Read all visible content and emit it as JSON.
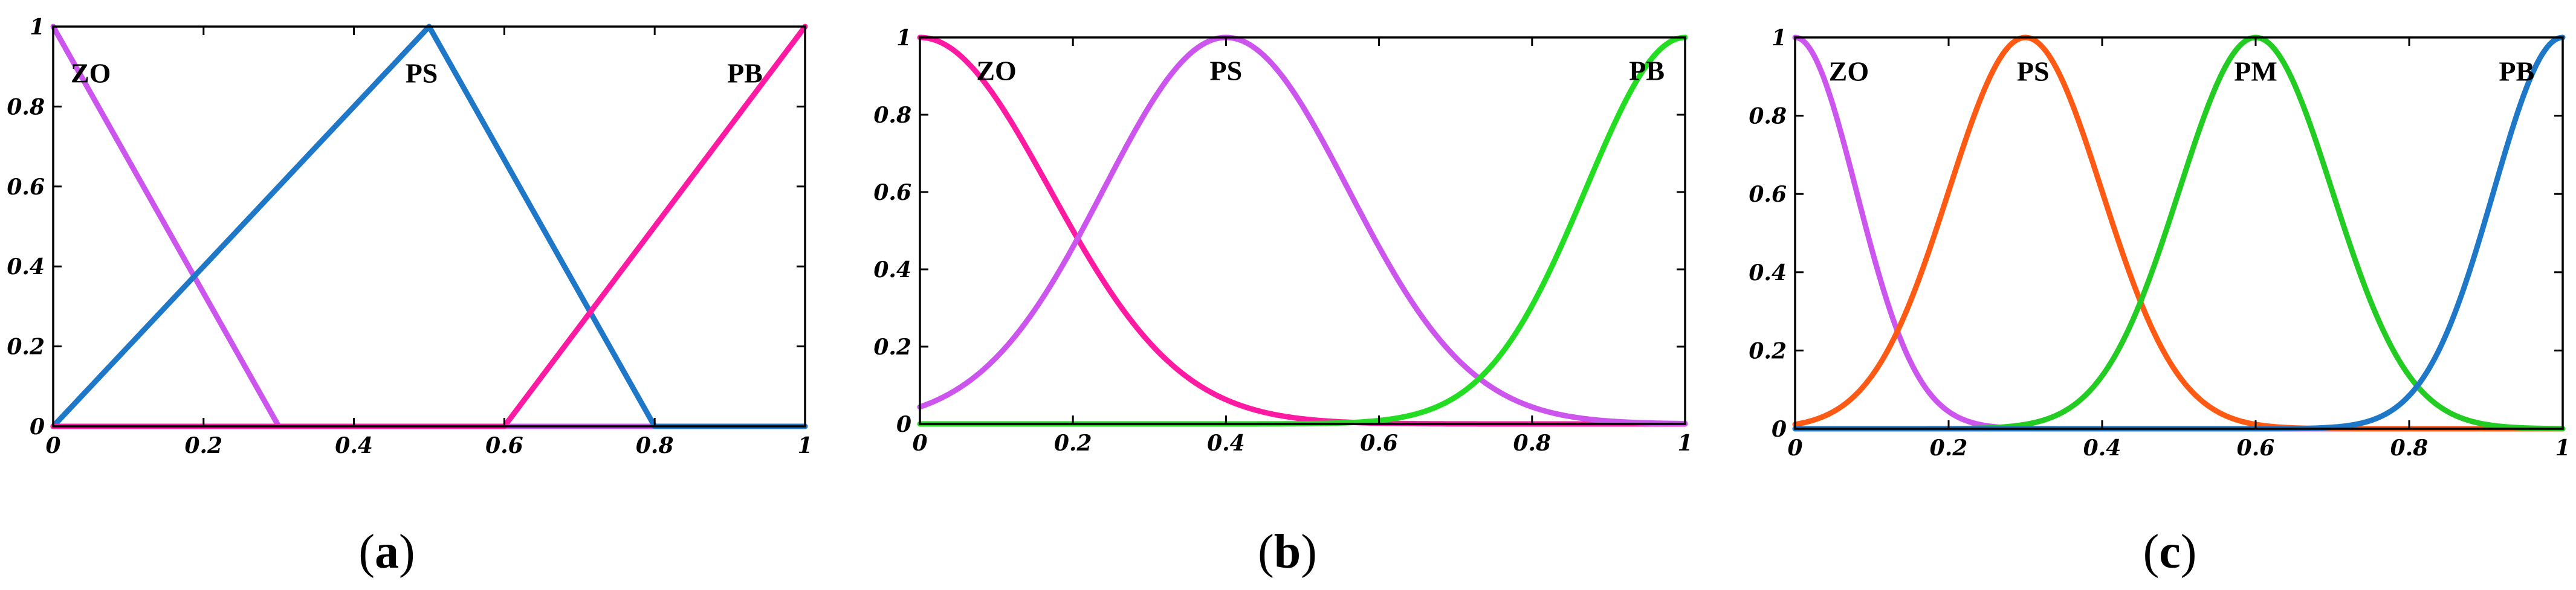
{
  "chart_data": [
    {
      "type": "line",
      "caption": {
        "open": "(",
        "letter": "a",
        "close": ")"
      },
      "xlim": [
        0,
        1
      ],
      "ylim": [
        0,
        1
      ],
      "xticks": [
        "0",
        "0.2",
        "0.4",
        "0.6",
        "0.8",
        "1"
      ],
      "yticks": [
        "0",
        "0.2",
        "0.4",
        "0.6",
        "0.8",
        "1"
      ],
      "grid": false,
      "series": [
        {
          "name": "ZO",
          "color": "#cc55ee",
          "shape": "triangle",
          "x": [
            0,
            0,
            0.3,
            1
          ],
          "y": [
            1,
            1,
            0,
            0
          ]
        },
        {
          "name": "PS",
          "color": "#1f77c8",
          "shape": "triangle",
          "x": [
            0,
            0.5,
            0.8,
            1
          ],
          "y": [
            0,
            1,
            0,
            0
          ]
        },
        {
          "name": "PB",
          "color": "#ff1aa3",
          "shape": "triangle",
          "x": [
            0,
            0.6,
            1,
            1
          ],
          "y": [
            0,
            0,
            1,
            1
          ]
        }
      ]
    },
    {
      "type": "line",
      "caption": {
        "open": "(",
        "letter": "b",
        "close": ")"
      },
      "xlim": [
        0,
        1
      ],
      "ylim": [
        0,
        1
      ],
      "xticks": [
        "0",
        "0.2",
        "0.4",
        "0.6",
        "0.8",
        "1"
      ],
      "yticks": [
        "0",
        "0.2",
        "0.4",
        "0.6",
        "0.8",
        "1"
      ],
      "grid": false,
      "series": [
        {
          "name": "ZO",
          "color": "#ff1aa3",
          "shape": "gaussian",
          "center": 0,
          "sigma": 0.17
        },
        {
          "name": "PS",
          "color": "#cc55ee",
          "shape": "gaussian",
          "center": 0.4,
          "sigma": 0.16
        },
        {
          "name": "PB",
          "color": "#22dd22",
          "shape": "gaussian",
          "center": 1,
          "sigma": 0.13
        }
      ]
    },
    {
      "type": "line",
      "caption": {
        "open": "(",
        "letter": "c",
        "close": ")"
      },
      "xlim": [
        0,
        1
      ],
      "ylim": [
        0,
        1
      ],
      "xticks": [
        "0",
        "0.2",
        "0.4",
        "0.6",
        "0.8",
        "1"
      ],
      "yticks": [
        "0",
        "0.2",
        "0.4",
        "0.6",
        "0.8",
        "1"
      ],
      "grid": false,
      "series": [
        {
          "name": "ZO",
          "color": "#cc55ee",
          "shape": "gaussian",
          "center": 0,
          "sigma": 0.08
        },
        {
          "name": "PS",
          "color": "#ff5a14",
          "shape": "gaussian",
          "center": 0.3,
          "sigma": 0.1
        },
        {
          "name": "PM",
          "color": "#22cc22",
          "shape": "gaussian",
          "center": 0.6,
          "sigma": 0.1
        },
        {
          "name": "PB",
          "color": "#1f77c8",
          "shape": "gaussian",
          "center": 1,
          "sigma": 0.09
        }
      ]
    }
  ]
}
